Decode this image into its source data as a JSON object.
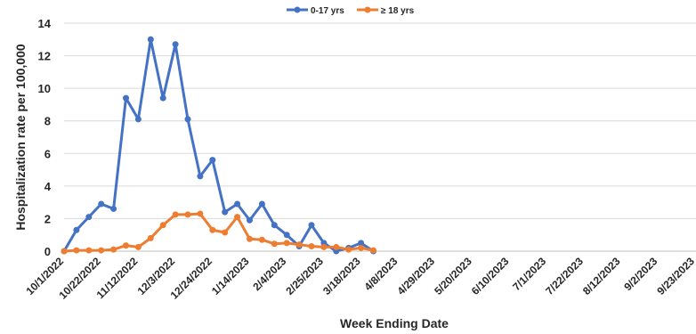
{
  "chart_data": {
    "type": "line",
    "title": "",
    "xlabel": "Week Ending Date",
    "ylabel": "Hospitalization rate per 100,000",
    "ylim": [
      0,
      14
    ],
    "yticks": [
      0,
      2,
      4,
      6,
      8,
      10,
      12,
      14
    ],
    "grid": true,
    "legend": "top-center",
    "x_tick_labels": [
      "10/1/2022",
      "10/22/2022",
      "11/12/2022",
      "12/3/2022",
      "12/24/2022",
      "1/14/2023",
      "2/4/2023",
      "2/25/2023",
      "3/18/2023",
      "4/8/2023",
      "4/29/2023",
      "5/20/2023",
      "6/10/2023",
      "7/1/2023",
      "7/22/2023",
      "8/12/2023",
      "9/2/2023",
      "9/23/2023"
    ],
    "x": [
      "10/1/2022",
      "10/8/2022",
      "10/15/2022",
      "10/22/2022",
      "10/29/2022",
      "11/5/2022",
      "11/12/2022",
      "11/19/2022",
      "11/26/2022",
      "12/3/2022",
      "12/10/2022",
      "12/17/2022",
      "12/24/2022",
      "12/31/2022",
      "1/7/2023",
      "1/14/2023",
      "1/21/2023",
      "1/28/2023",
      "2/4/2023",
      "2/11/2023",
      "2/18/2023",
      "2/25/2023",
      "3/4/2023",
      "3/11/2023",
      "3/18/2023",
      "3/25/2023",
      "4/1/2023"
    ],
    "series": [
      {
        "name": "0-17 yrs",
        "color": "#4472C4",
        "values": [
          0.0,
          1.3,
          2.1,
          2.9,
          2.6,
          9.4,
          8.1,
          13.0,
          9.4,
          12.7,
          8.1,
          4.6,
          5.6,
          2.4,
          2.9,
          1.9,
          2.9,
          1.6,
          1.0,
          0.3,
          1.6,
          0.5,
          0.0,
          0.2,
          0.5,
          0.0,
          null
        ]
      },
      {
        "name": "≥ 18 yrs",
        "color": "#ED7D31",
        "values": [
          0.0,
          0.05,
          0.05,
          0.05,
          0.1,
          0.35,
          0.25,
          0.8,
          1.6,
          2.25,
          2.25,
          2.3,
          1.3,
          1.15,
          2.1,
          0.75,
          0.7,
          0.45,
          0.5,
          0.4,
          0.3,
          0.25,
          0.25,
          0.1,
          0.2,
          0.05,
          null
        ]
      }
    ]
  },
  "colors": {
    "grid": "#D9D9D9",
    "axis": "#BFBFBF",
    "text": "#262626"
  }
}
